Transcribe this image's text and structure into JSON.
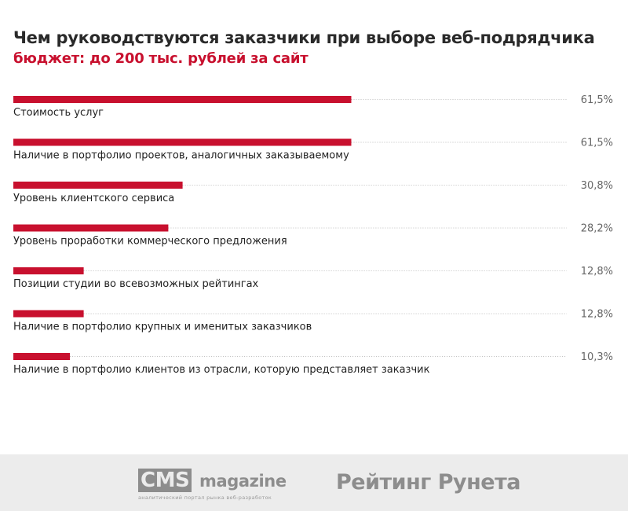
{
  "chart_data": {
    "type": "bar",
    "orientation": "horizontal",
    "title": "Чем руководствуются заказчики при выборе веб-подрядчика",
    "subtitle": "бюджет: до 200 тыс. рублей за сайт",
    "categories": [
      "Стоимость услуг",
      "Наличие в портфолио проектов, аналогичных заказываемому",
      "Уровень клиентского сервиса",
      "Уровень проработки коммерческого предложения",
      "Позиции студии во всевозможных рейтингах",
      "Наличие в портфолио крупных и именитых заказчиков",
      "Наличие в портфолио клиентов из отрасли, которую представляет заказчик"
    ],
    "values": [
      61.5,
      61.5,
      30.8,
      28.2,
      12.8,
      12.8,
      10.3
    ],
    "value_labels": [
      "61,5%",
      "61,5%",
      "30,8%",
      "28,2%",
      "12,8%",
      "12,8%",
      "10,3%"
    ],
    "xlim": [
      0,
      100
    ],
    "bar_color": "#c8102e",
    "grid": false,
    "legend": "none"
  },
  "colors": {
    "accent": "#c8102e",
    "title": "#2a2a2a",
    "footer_bg": "#ececec",
    "logo_gray": "#8d8d8d"
  },
  "footer": {
    "cms_box": "CMS",
    "cms_word": "magazine",
    "cms_tagline": "аналитический портал рынка веб-разработок",
    "runet": "Рейтинг Рунета"
  }
}
